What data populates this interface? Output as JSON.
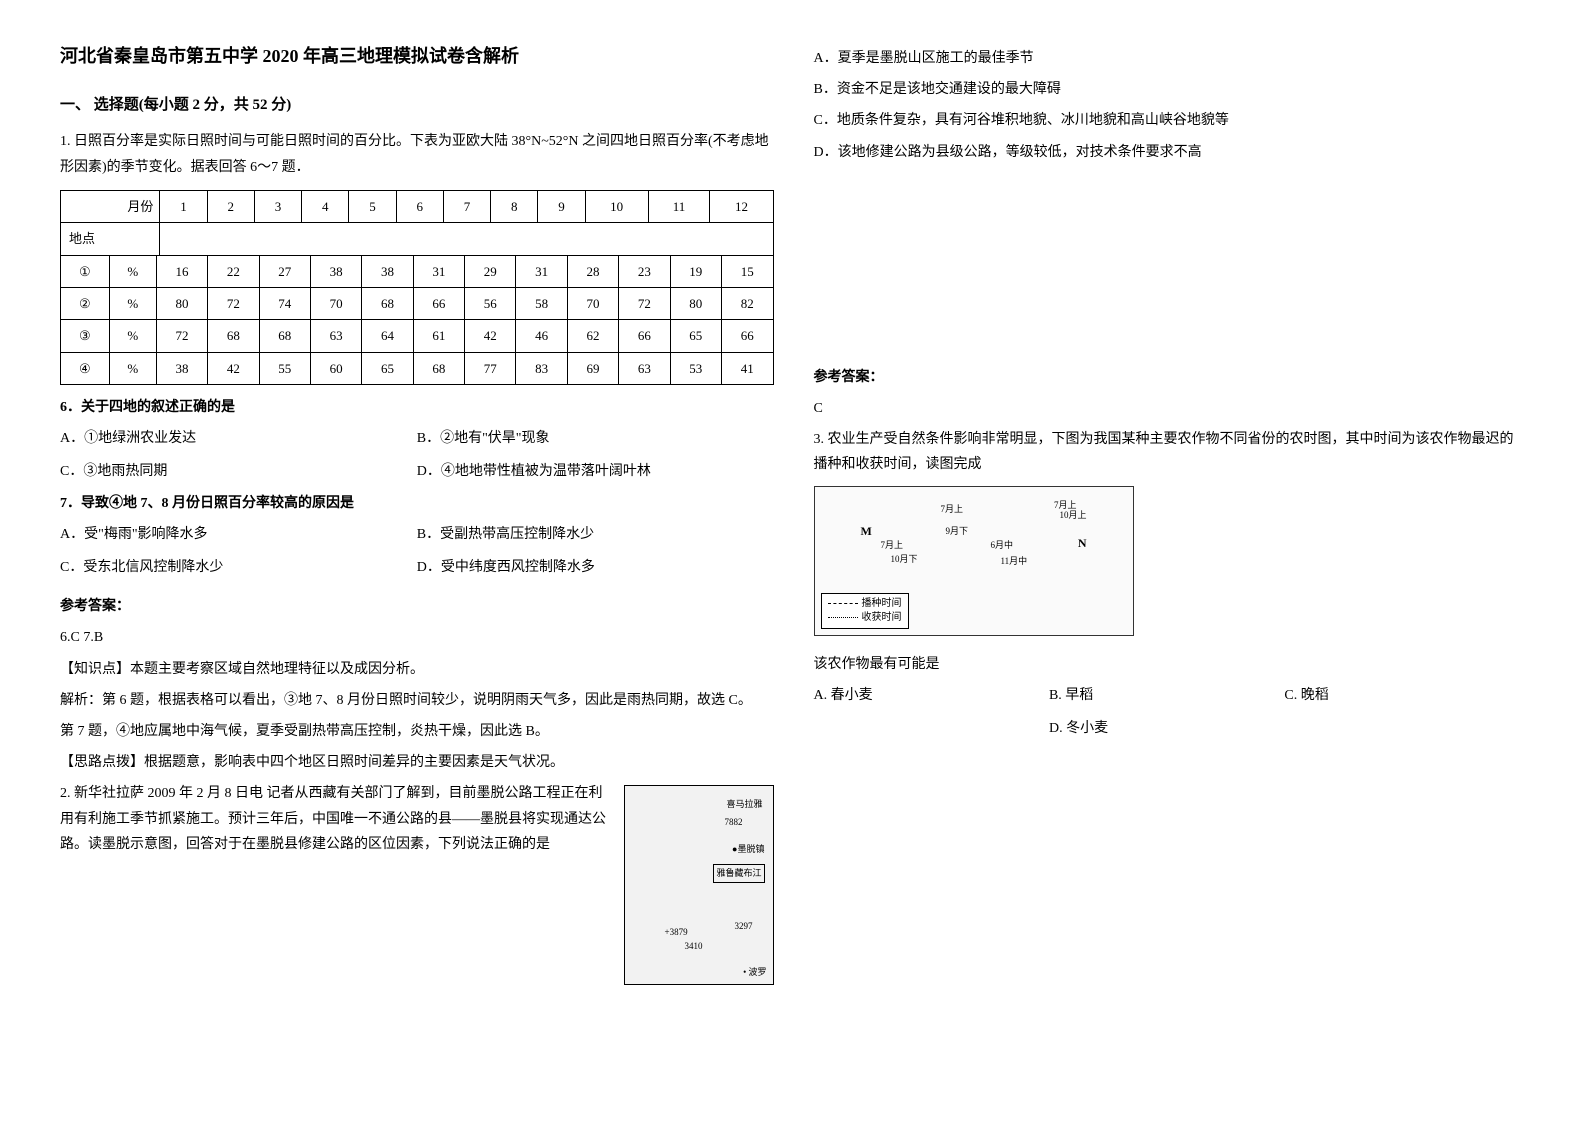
{
  "title": "河北省秦皇岛市第五中学 2020 年高三地理模拟试卷含解析",
  "section1": "一、 选择题(每小题 2 分，共 52 分)",
  "q1": {
    "intro": "1. 日照百分率是实际日照时间与可能日照时间的百分比。下表为亚欧大陆 38°N~52°N 之间四地日照百分率(不考虑地形因素)的季节变化。据表回答 6～7 题．",
    "table": {
      "header_left_top": "月份",
      "header_left_bottom": "地点",
      "months": [
        "1",
        "2",
        "3",
        "4",
        "5",
        "6",
        "7",
        "8",
        "9",
        "10",
        "11",
        "12"
      ],
      "rows": [
        {
          "label": "①",
          "unit": "%",
          "vals": [
            "16",
            "22",
            "27",
            "38",
            "38",
            "31",
            "29",
            "31",
            "28",
            "23",
            "19",
            "15"
          ]
        },
        {
          "label": "②",
          "unit": "%",
          "vals": [
            "80",
            "72",
            "74",
            "70",
            "68",
            "66",
            "56",
            "58",
            "70",
            "72",
            "80",
            "82"
          ]
        },
        {
          "label": "③",
          "unit": "%",
          "vals": [
            "72",
            "68",
            "68",
            "63",
            "64",
            "61",
            "42",
            "46",
            "62",
            "66",
            "65",
            "66"
          ]
        },
        {
          "label": "④",
          "unit": "%",
          "vals": [
            "38",
            "42",
            "55",
            "60",
            "65",
            "68",
            "77",
            "83",
            "69",
            "63",
            "53",
            "41"
          ]
        }
      ]
    },
    "q6": {
      "stem": "6．关于四地的叙述正确的是",
      "A": "A．①地绿洲农业发达",
      "B": "B．②地有\"伏旱\"现象",
      "C": "C．③地雨热同期",
      "D": "D．④地地带性植被为温带落叶阔叶林"
    },
    "q7": {
      "stem": "7．导致④地 7、8 月份日照百分率较高的原因是",
      "A": "A．受\"梅雨\"影响降水多",
      "B": "B．受副热带高压控制降水少",
      "C": "C．受东北信风控制降水少",
      "D": "D．受中纬度西风控制降水多"
    },
    "answer": {
      "head": "参考答案：",
      "line1": "6.C   7.B",
      "line2": "【知识点】本题主要考察区域自然地理特征以及成因分析。",
      "line3": "解析：第 6 题，根据表格可以看出，③地 7、8 月份日照时间较少，说明阴雨天气多，因此是雨热同期，故选 C。",
      "line4": "第 7 题，④地应属地中海气候，夏季受副热带高压控制，炎热干燥，因此选 B。",
      "line5": "【思路点拨】根据题意，影响表中四个地区日照时间差异的主要因素是天气状况。"
    }
  },
  "q2": {
    "stem": "2. 新华社拉萨 2009 年 2 月 8 日电     记者从西藏有关部门了解到，目前墨脱公路工程正在利用有利施工季节抓紧施工。预计三年后，中国唯一不通公路的县——墨脱县将实现通达公路。读墨脱示意图，回答对于在墨脱县修建公路的区位因素，下列说法正确的是",
    "A": "A．夏季是墨脱山区施工的最佳季节",
    "B": "B．资金不足是该地交通建设的最大障碍",
    "C": "C．地质条件复杂，具有河谷堆积地貌、冰川地貌和高山峡谷地貌等",
    "D": "D．该地修建公路为县级公路，等级较低，对技术条件要求不高",
    "map_labels": {
      "himalaya": "喜马拉雅",
      "peak": "7882",
      "motuo": "墨脱镇",
      "river": "雅鲁藏布江",
      "e1": "+3879",
      "e2": "3297",
      "e3": "3410",
      "poluo": "• 波罗"
    },
    "answer": {
      "head": "参考答案：",
      "ans": "C"
    }
  },
  "q3": {
    "stem": "3. 农业生产受自然条件影响非常明显，下图为我国某种主要农作物不同省份的农时图，其中时间为该农作物最迟的播种和收获时间，读图完成",
    "map": {
      "legend_sow": "播种时间",
      "legend_harvest": "收获时间",
      "lbl1": "7月上",
      "lbl2": "7月上",
      "lbl3": "10月上",
      "lbl4": "9月下",
      "lbl5": "7月上",
      "lbl6": "6月中",
      "lbl7": "10月下",
      "lbl8": "11月中",
      "M": "M",
      "N": "N"
    },
    "sub": "该农作物最有可能是",
    "A": "A. 春小麦",
    "B": "B. 早稻",
    "C": "C. 晚稻",
    "D": "D. 冬小麦"
  }
}
